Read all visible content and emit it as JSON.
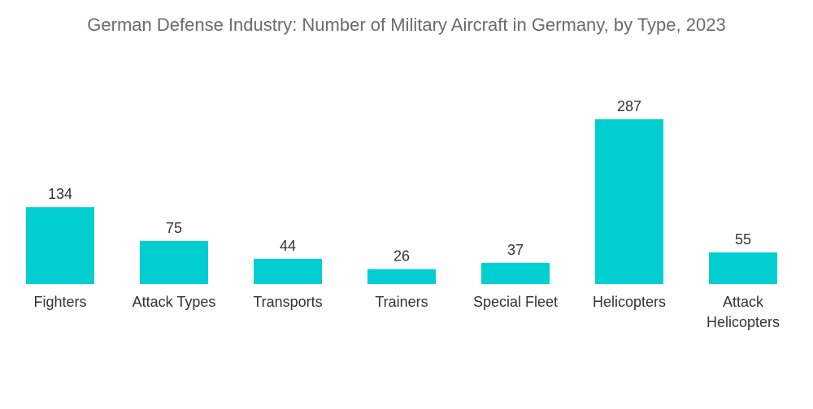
{
  "chart_data": {
    "type": "bar",
    "title": "German Defense Industry: Number of Military Aircraft in Germany, by Type, 2023",
    "categories": [
      "Fighters",
      "Attack Types",
      "Transports",
      "Trainers",
      "Special Fleet",
      "Helicopters",
      "Attack Helicopters"
    ],
    "values": [
      134,
      75,
      44,
      26,
      37,
      287,
      55
    ],
    "xlabel": "",
    "ylabel": "",
    "ylim": [
      0,
      287
    ],
    "grid": false,
    "legend": "none",
    "color": "#00ced1"
  }
}
